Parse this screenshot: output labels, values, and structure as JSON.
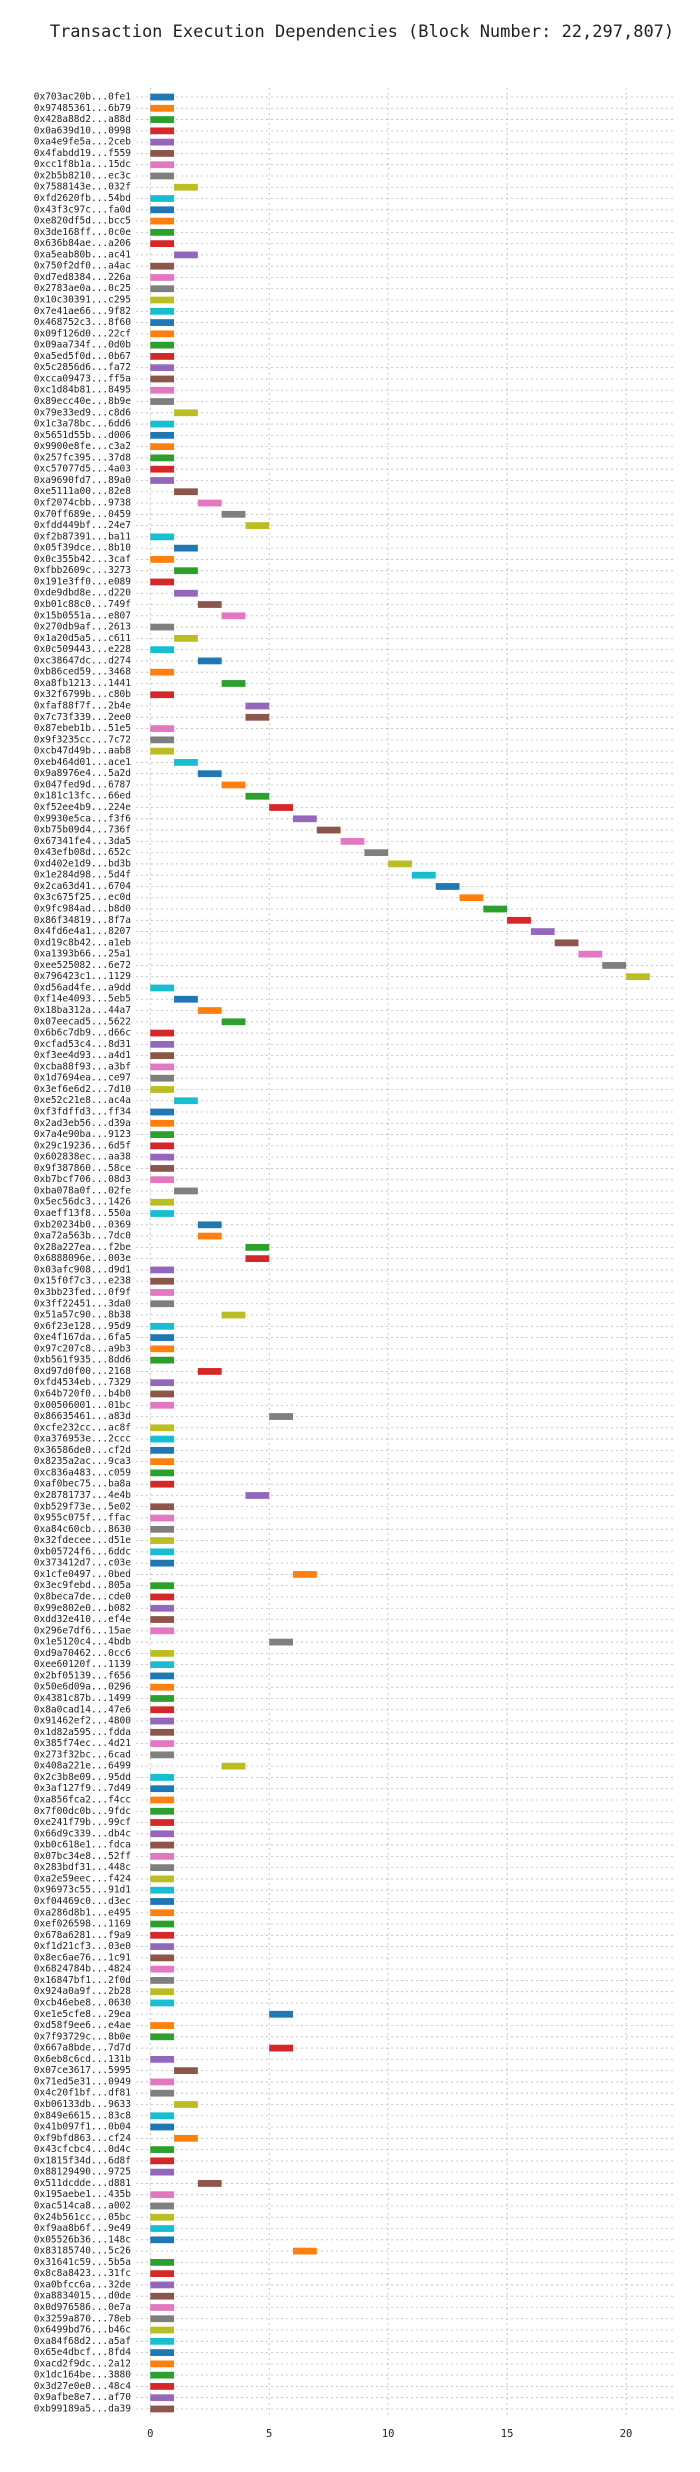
{
  "chart_data": {
    "type": "gantt",
    "title": "Transaction Execution Dependencies (Block Number: 22,297,807)",
    "categories": [
      "0x703ac20b...0fe1",
      "0x97485361...6b79",
      "0x428a88d2...a88d",
      "0x0a639d10...0998",
      "0xa4e9fe5a...2ceb",
      "0x4fabdd19...f559",
      "0xcc1f8b1a...15dc",
      "0x2b5b8210...ec3c",
      "0x7588143e...032f",
      "0xfd2620fb...54bd",
      "0x43f3c97c...fa0d",
      "0xe820df5d...bcc5",
      "0x3de168ff...0c0e",
      "0x636b84ae...a206",
      "0xa5eab80b...ac41",
      "0x750f2df0...a4ac",
      "0xd7ed8384...226a",
      "0x2783ae0a...0c25",
      "0x10c30391...c295",
      "0x7e41ae66...9f82",
      "0x468752c3...8f60",
      "0x09f126d0...22cf",
      "0x09aa734f...0d0b",
      "0xa5ed5f0d...0b67",
      "0x5c2856d6...fa72",
      "0xcca09473...ff5a",
      "0xc1d84b81...8495",
      "0x89ecc40e...8b9e",
      "0x79e33ed9...c8d6",
      "0x1c3a78bc...6dd6",
      "0x5651d55b...d006",
      "0x9900e8fe...c3a2",
      "0x257fc395...37d8",
      "0xc57077d5...4a03",
      "0xa9690fd7...89a0",
      "0xe5111a00...82e8",
      "0xf2074cbb...9738",
      "0x70ff689e...0459",
      "0xfdd449bf...24e7",
      "0xf2b87391...ba11",
      "0x05f39dce...8b10",
      "0x0c355b42...3caf",
      "0xfbb2609c...3273",
      "0x191e3ff0...e089",
      "0xde9dbd8e...d220",
      "0xb01c88c0...749f",
      "0x15b0551a...e807",
      "0x270db9af...2613",
      "0x1a20d5a5...c611",
      "0x0c509443...e228",
      "0xc38647dc...d274",
      "0xb86ced59...3468",
      "0xa8fb1213...1441",
      "0x32f6799b...c80b",
      "0xfaf88f7f...2b4e",
      "0x7c73f339...2ee0",
      "0x87ebeb1b...51e5",
      "0x9f3235cc...7c72",
      "0xcb47d49b...aab8",
      "0xeb464d01...ace1",
      "0x9a8976e4...5a2d",
      "0x047fed9d...6787",
      "0x181c13fc...66ed",
      "0xf52ee4b9...224e",
      "0x9930e5ca...f3f6",
      "0xb75b09d4...736f",
      "0x67341fe4...3da5",
      "0x43efb08d...652c",
      "0xd402e1d9...bd3b",
      "0x1e284d98...5d4f",
      "0x2ca63d41...6704",
      "0x3c675f25...ec0d",
      "0x9fc984ad...b8d0",
      "0x86f34819...8f7a",
      "0x4fd6e4a1...8207",
      "0xd19c8b42...a1eb",
      "0xa1393b66...25a1",
      "0xee525082...6e72",
      "0x796423c1...1129",
      "0xd56ad4fe...a9dd",
      "0xf14e4093...5eb5",
      "0x18ba312a...44a7",
      "0x07eecad5...5622",
      "0x6b6c7db9...d66c",
      "0xcfad53c4...8d31",
      "0xf3ee4d93...a4d1",
      "0xcba88f93...a3bf",
      "0x1d7694ea...ce97",
      "0x3ef6e6d2...7d10",
      "0xe52c21e8...ac4a",
      "0xf3fdffd3...ff34",
      "0x2ad3eb56...d39a",
      "0x7a4e90ba...9123",
      "0x29c19236...6d5f",
      "0x602838ec...aa38",
      "0x9f387860...58ce",
      "0xb7bcf706...08d3",
      "0xba078a0f...02fe",
      "0x5ec56dc3...1426",
      "0xaeff13f8...550a",
      "0xb20234b0...0369",
      "0xa72a563b...7dc0",
      "0x28a227ea...f2be",
      "0x6888096e...003e",
      "0x03afc908...d9d1",
      "0x15f0f7c3...e238",
      "0x3bb23fed...0f9f",
      "0x3ff22451...3da0",
      "0x51a57c90...8b38",
      "0x6f23e128...95d9",
      "0xe4f167da...6fa5",
      "0x97c207c8...a9b3",
      "0xb561f935...8dd6",
      "0xd97d0f00...2168",
      "0xfd4534eb...7329",
      "0x64b720f0...b4b0",
      "0x00506001...01bc",
      "0x86635461...a83d",
      "0xcfe232cc...ac8f",
      "0xa376953e...2ccc",
      "0x36586de0...cf2d",
      "0x8235a2ac...9ca3",
      "0xc836a483...c059",
      "0xaf0bec75...ba8a",
      "0x28781737...4e4b",
      "0xb529f73e...5e02",
      "0x955c075f...ffac",
      "0xa84c60cb...8630",
      "0x32fdecee...d51e",
      "0xb05724f6...6ddc",
      "0x373412d7...c03e",
      "0x1cfe0497...0bed",
      "0x3ec9febd...805a",
      "0x8beca7de...cde0",
      "0x99e802e0...b082",
      "0xdd32e410...ef4e",
      "0x296e7df6...15ae",
      "0x1e5120c4...4bdb",
      "0xd9a70462...0cc6",
      "0xee60120f...1139",
      "0x2bf05139...f656",
      "0x50e6d09a...0296",
      "0x4381c87b...1499",
      "0x8a0cad14...47e6",
      "0x91462ef2...4800",
      "0x1d82a595...fdda",
      "0x385f74ec...4d21",
      "0x273f32bc...6cad",
      "0x408a221e...6499",
      "0x2c3b8e09...95dd",
      "0x3af127f9...7d49",
      "0xa856fca2...f4cc",
      "0x7f00dc0b...9fdc",
      "0xe241f79b...99cf",
      "0x66d9c339...db4c",
      "0xb0c618e1...fdca",
      "0x07bc34e8...52ff",
      "0x283bdf31...448c",
      "0xa2e59eec...f424",
      "0x96973c55...91d1",
      "0xf04469c0...d3ec",
      "0xa286d8b1...e495",
      "0xef026598...1169",
      "0x678a6281...f9a9",
      "0xf1d21cf3...03e0",
      "0x8ec6ae76...1c91",
      "0x6824784b...4824",
      "0x16847bf1...2f0d",
      "0x924a0a9f...2b28",
      "0xcb46ebe8...0630",
      "0xe1e5cfe8...29ea",
      "0xd58f9ee6...e4ae",
      "0x7f93729c...8b0e",
      "0x667a8bde...7d7d",
      "0x6eb8c6cd...131b",
      "0x07ce3617...5995",
      "0x71ed5e31...0949",
      "0x4c20f1bf...df81",
      "0xb06133db...9633",
      "0x849e6615...83c8",
      "0x41b097f1...0b04",
      "0xf9bfd863...cf24",
      "0x43cfcbc4...0d4c",
      "0x1815f34d...6d8f",
      "0x88129490...9725",
      "0x511dcdde...d881",
      "0x195aebe1...435b",
      "0xac514ca8...a002",
      "0x24b561cc...05bc",
      "0xf9aa8b6f...9e49",
      "0x05526b36...148c",
      "0x83185740...5c26",
      "0x31641c59...5b5a",
      "0x8c8a8423...31fc",
      "0xa0bfcc6a...32de",
      "0xa8834015...d0de",
      "0x0d976586...0e7a",
      "0x3259a870...78eb",
      "0x6499bd76...b46c",
      "0xa84f68d2...a5af",
      "0x65e4dbcf...8fd4",
      "0xacd2f9dc...2a12",
      "0x1dc164be...3880",
      "0x3d27e0e0...48c4",
      "0x9afbe8e7...af70",
      "0xb99189a5...da39"
    ],
    "start": [
      0,
      0,
      0,
      0,
      0,
      0,
      0,
      0,
      1,
      0,
      0,
      0,
      0,
      0,
      1,
      0,
      0,
      0,
      0,
      0,
      0,
      0,
      0,
      0,
      0,
      0,
      0,
      0,
      1,
      0,
      0,
      0,
      0,
      0,
      0,
      1,
      2,
      3,
      4,
      0,
      1,
      0,
      1,
      0,
      1,
      2,
      3,
      0,
      1,
      0,
      2,
      0,
      3,
      0,
      4,
      4,
      0,
      0,
      0,
      1,
      2,
      3,
      4,
      5,
      6,
      7,
      8,
      9,
      10,
      11,
      12,
      13,
      14,
      15,
      16,
      17,
      18,
      19,
      20,
      0,
      1,
      2,
      3,
      0,
      0,
      0,
      0,
      0,
      0,
      1,
      0,
      0,
      0,
      0,
      0,
      0,
      0,
      1,
      0,
      0,
      2,
      2,
      4,
      4,
      0,
      0,
      0,
      0,
      3,
      0,
      0,
      0,
      0,
      2,
      0,
      0,
      0,
      5,
      0,
      0,
      0,
      0,
      0,
      0,
      4,
      0,
      0,
      0,
      0,
      0,
      0,
      6,
      0,
      0,
      0,
      0,
      0,
      5,
      0,
      0,
      0,
      0,
      0,
      0,
      0,
      0,
      0,
      0,
      3,
      0,
      0,
      0,
      0,
      0,
      0,
      0,
      0,
      0,
      0,
      0,
      0,
      0,
      0,
      0,
      0,
      0,
      0,
      0,
      0,
      0,
      5,
      0,
      0,
      5,
      0,
      1,
      0,
      0,
      1,
      0,
      0,
      1,
      0,
      0,
      0,
      2,
      0,
      0,
      0,
      0,
      0,
      6,
      0,
      0,
      0,
      0,
      0,
      0,
      0,
      0,
      0,
      0,
      0,
      0,
      0,
      0
    ],
    "end": [
      1,
      1,
      1,
      1,
      1,
      1,
      1,
      1,
      2,
      1,
      1,
      1,
      1,
      1,
      2,
      1,
      1,
      1,
      1,
      1,
      1,
      1,
      1,
      1,
      1,
      1,
      1,
      1,
      2,
      1,
      1,
      1,
      1,
      1,
      1,
      2,
      3,
      4,
      5,
      1,
      2,
      1,
      2,
      1,
      2,
      3,
      4,
      1,
      2,
      1,
      3,
      1,
      4,
      1,
      5,
      5,
      1,
      1,
      1,
      2,
      3,
      4,
      5,
      6,
      7,
      8,
      9,
      10,
      11,
      12,
      13,
      14,
      15,
      16,
      17,
      18,
      19,
      20,
      21,
      1,
      2,
      3,
      4,
      1,
      1,
      1,
      1,
      1,
      1,
      2,
      1,
      1,
      1,
      1,
      1,
      1,
      1,
      2,
      1,
      1,
      3,
      3,
      5,
      5,
      1,
      1,
      1,
      1,
      4,
      1,
      1,
      1,
      1,
      3,
      1,
      1,
      1,
      6,
      1,
      1,
      1,
      1,
      1,
      1,
      5,
      1,
      1,
      1,
      1,
      1,
      1,
      7,
      1,
      1,
      1,
      1,
      1,
      6,
      1,
      1,
      1,
      1,
      1,
      1,
      1,
      1,
      1,
      1,
      4,
      1,
      1,
      1,
      1,
      1,
      1,
      1,
      1,
      1,
      1,
      1,
      1,
      1,
      1,
      1,
      1,
      1,
      1,
      1,
      1,
      1,
      6,
      1,
      1,
      6,
      1,
      2,
      1,
      1,
      2,
      1,
      1,
      2,
      1,
      1,
      1,
      3,
      1,
      1,
      1,
      1,
      1,
      7,
      1,
      1,
      1,
      1,
      1,
      1,
      1,
      1,
      1,
      1,
      1,
      1,
      1,
      1
    ],
    "colors": [
      "#1f77b4",
      "#ff7f0e",
      "#2ca02c",
      "#d62728",
      "#9467bd",
      "#8c564b",
      "#e377c2",
      "#7f7f7f",
      "#bcbd22",
      "#17becf"
    ],
    "xlim": [
      -0.6,
      22.1
    ],
    "xticks": [
      0,
      5,
      10,
      15,
      20
    ],
    "grid": true
  }
}
